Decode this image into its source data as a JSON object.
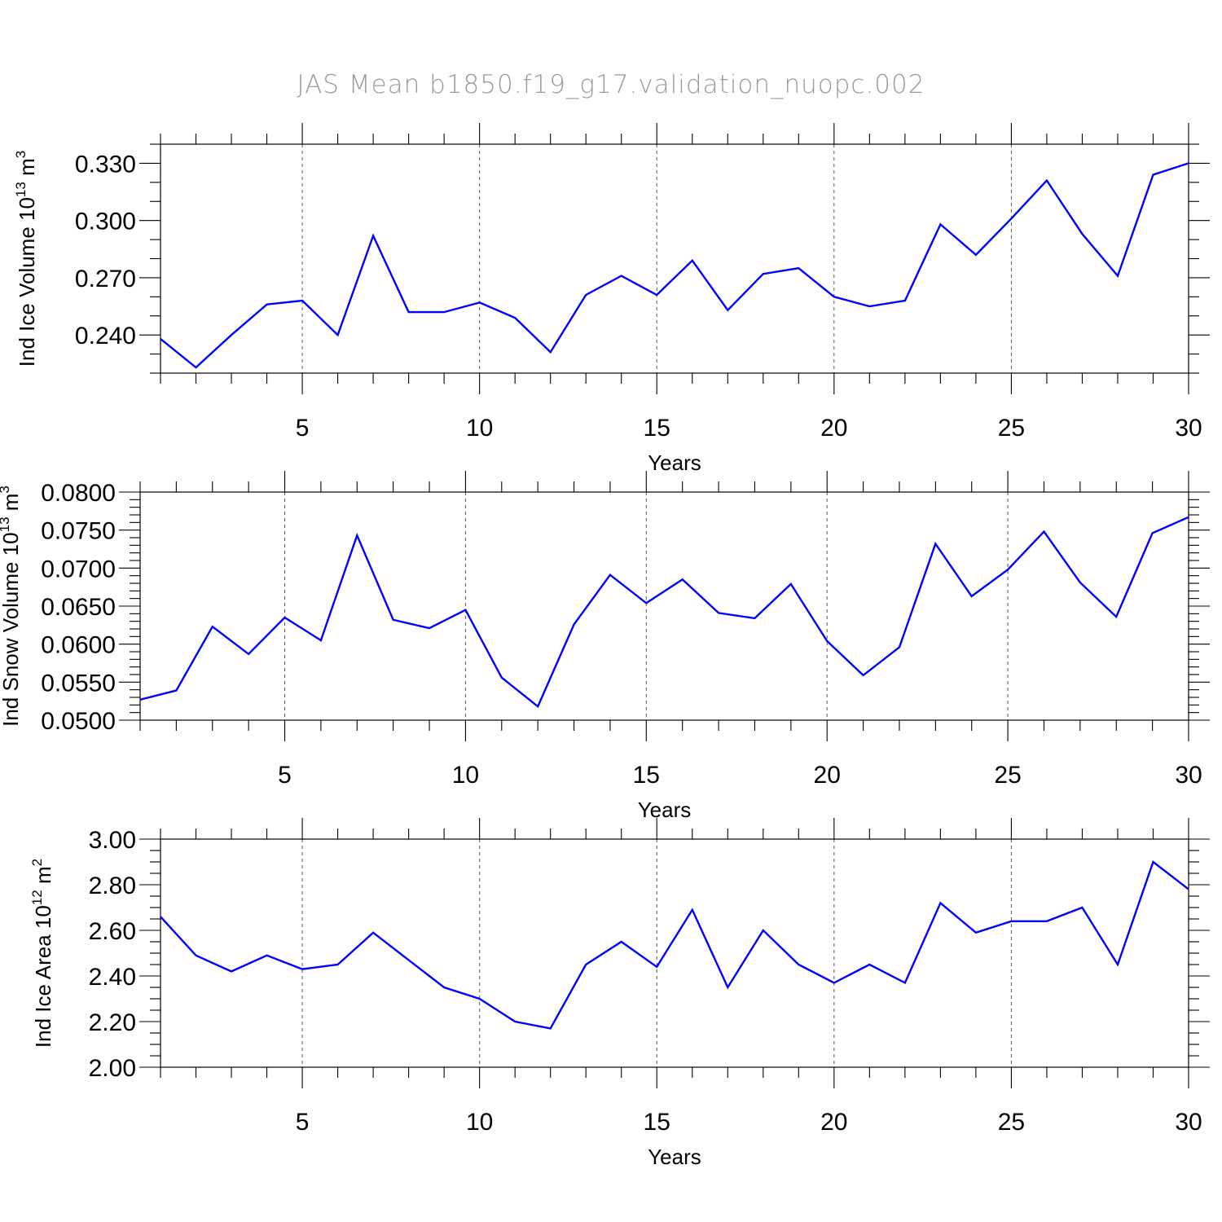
{
  "figure": {
    "title": "JAS Mean b1850.f19_g17.validation_nuopc.002",
    "line_color": "#0000ff"
  },
  "chart_data": [
    {
      "type": "line",
      "xlabel": "Years",
      "ylabel": "Ind Ice Volume 10",
      "ylabel_sup": "13",
      "ylabel_unit": " m",
      "ylabel_unit_sup": "3",
      "xlim": [
        1,
        30
      ],
      "ylim": [
        0.22,
        0.34
      ],
      "yticks": [
        0.24,
        0.27,
        0.3,
        0.33
      ],
      "ytick_labels": [
        "0.240",
        "0.270",
        "0.300",
        "0.330"
      ],
      "yminor_step": 0.01,
      "xticks": [
        5,
        10,
        15,
        20,
        25,
        30
      ],
      "xtick_labels": [
        "5",
        "10",
        "15",
        "20",
        "25",
        "30"
      ],
      "grid_x": true,
      "x": [
        1,
        2,
        3,
        4,
        5,
        6,
        7,
        8,
        9,
        10,
        11,
        12,
        13,
        14,
        15,
        16,
        17,
        18,
        19,
        20,
        21,
        22,
        23,
        24,
        25,
        26,
        27,
        28,
        29,
        30
      ],
      "series": [
        {
          "values": [
            0.238,
            0.223,
            0.24,
            0.256,
            0.258,
            0.24,
            0.292,
            0.252,
            0.252,
            0.257,
            0.249,
            0.231,
            0.261,
            0.271,
            0.261,
            0.279,
            0.253,
            0.272,
            0.275,
            0.26,
            0.255,
            0.258,
            0.298,
            0.282,
            0.301,
            0.321,
            0.293,
            0.271,
            0.324,
            0.33
          ]
        }
      ]
    },
    {
      "type": "line",
      "xlabel": "Years",
      "ylabel": "Ind Snow Volume 10",
      "ylabel_sup": "13",
      "ylabel_unit": " m",
      "ylabel_unit_sup": "3",
      "xlim": [
        1,
        30
      ],
      "ylim": [
        0.05,
        0.08
      ],
      "yticks": [
        0.05,
        0.055,
        0.06,
        0.065,
        0.07,
        0.075,
        0.08
      ],
      "ytick_labels": [
        "0.0500",
        "0.0550",
        "0.0600",
        "0.0650",
        "0.0700",
        "0.0750",
        "0.0800"
      ],
      "yminor_step": 0.001,
      "xticks": [
        5,
        10,
        15,
        20,
        25,
        30
      ],
      "xtick_labels": [
        "5",
        "10",
        "15",
        "20",
        "25",
        "30"
      ],
      "grid_x": true,
      "x": [
        1,
        2,
        3,
        4,
        5,
        6,
        7,
        8,
        9,
        10,
        11,
        12,
        13,
        14,
        15,
        16,
        17,
        18,
        19,
        20,
        21,
        22,
        23,
        24,
        25,
        26,
        27,
        28,
        29,
        30
      ],
      "series": [
        {
          "values": [
            0.0527,
            0.0539,
            0.0623,
            0.0587,
            0.0635,
            0.0605,
            0.0743,
            0.0632,
            0.0621,
            0.0645,
            0.0556,
            0.0518,
            0.0626,
            0.0691,
            0.0654,
            0.0685,
            0.0641,
            0.0634,
            0.0679,
            0.0604,
            0.0559,
            0.0596,
            0.0732,
            0.0663,
            0.0698,
            0.0748,
            0.0681,
            0.0636,
            0.0746,
            0.0767
          ]
        }
      ]
    },
    {
      "type": "line",
      "xlabel": "Years",
      "ylabel": "Ind Ice Area 10",
      "ylabel_sup": "12",
      "ylabel_unit": " m",
      "ylabel_unit_sup": "2",
      "xlim": [
        1,
        30
      ],
      "ylim": [
        2.0,
        3.0
      ],
      "yticks": [
        2.0,
        2.2,
        2.4,
        2.6,
        2.8,
        3.0
      ],
      "ytick_labels": [
        "2.00",
        "2.20",
        "2.40",
        "2.60",
        "2.80",
        "3.00"
      ],
      "yminor_step": 0.05,
      "xticks": [
        5,
        10,
        15,
        20,
        25,
        30
      ],
      "xtick_labels": [
        "5",
        "10",
        "15",
        "20",
        "25",
        "30"
      ],
      "grid_x": true,
      "x": [
        1,
        2,
        3,
        4,
        5,
        6,
        7,
        8,
        9,
        10,
        11,
        12,
        13,
        14,
        15,
        16,
        17,
        18,
        19,
        20,
        21,
        22,
        23,
        24,
        25,
        26,
        27,
        28,
        29,
        30
      ],
      "series": [
        {
          "values": [
            2.66,
            2.49,
            2.42,
            2.49,
            2.43,
            2.45,
            2.59,
            2.47,
            2.35,
            2.3,
            2.2,
            2.17,
            2.45,
            2.55,
            2.44,
            2.69,
            2.35,
            2.6,
            2.45,
            2.37,
            2.45,
            2.37,
            2.72,
            2.59,
            2.64,
            2.64,
            2.7,
            2.45,
            2.9,
            2.78
          ]
        }
      ]
    }
  ]
}
